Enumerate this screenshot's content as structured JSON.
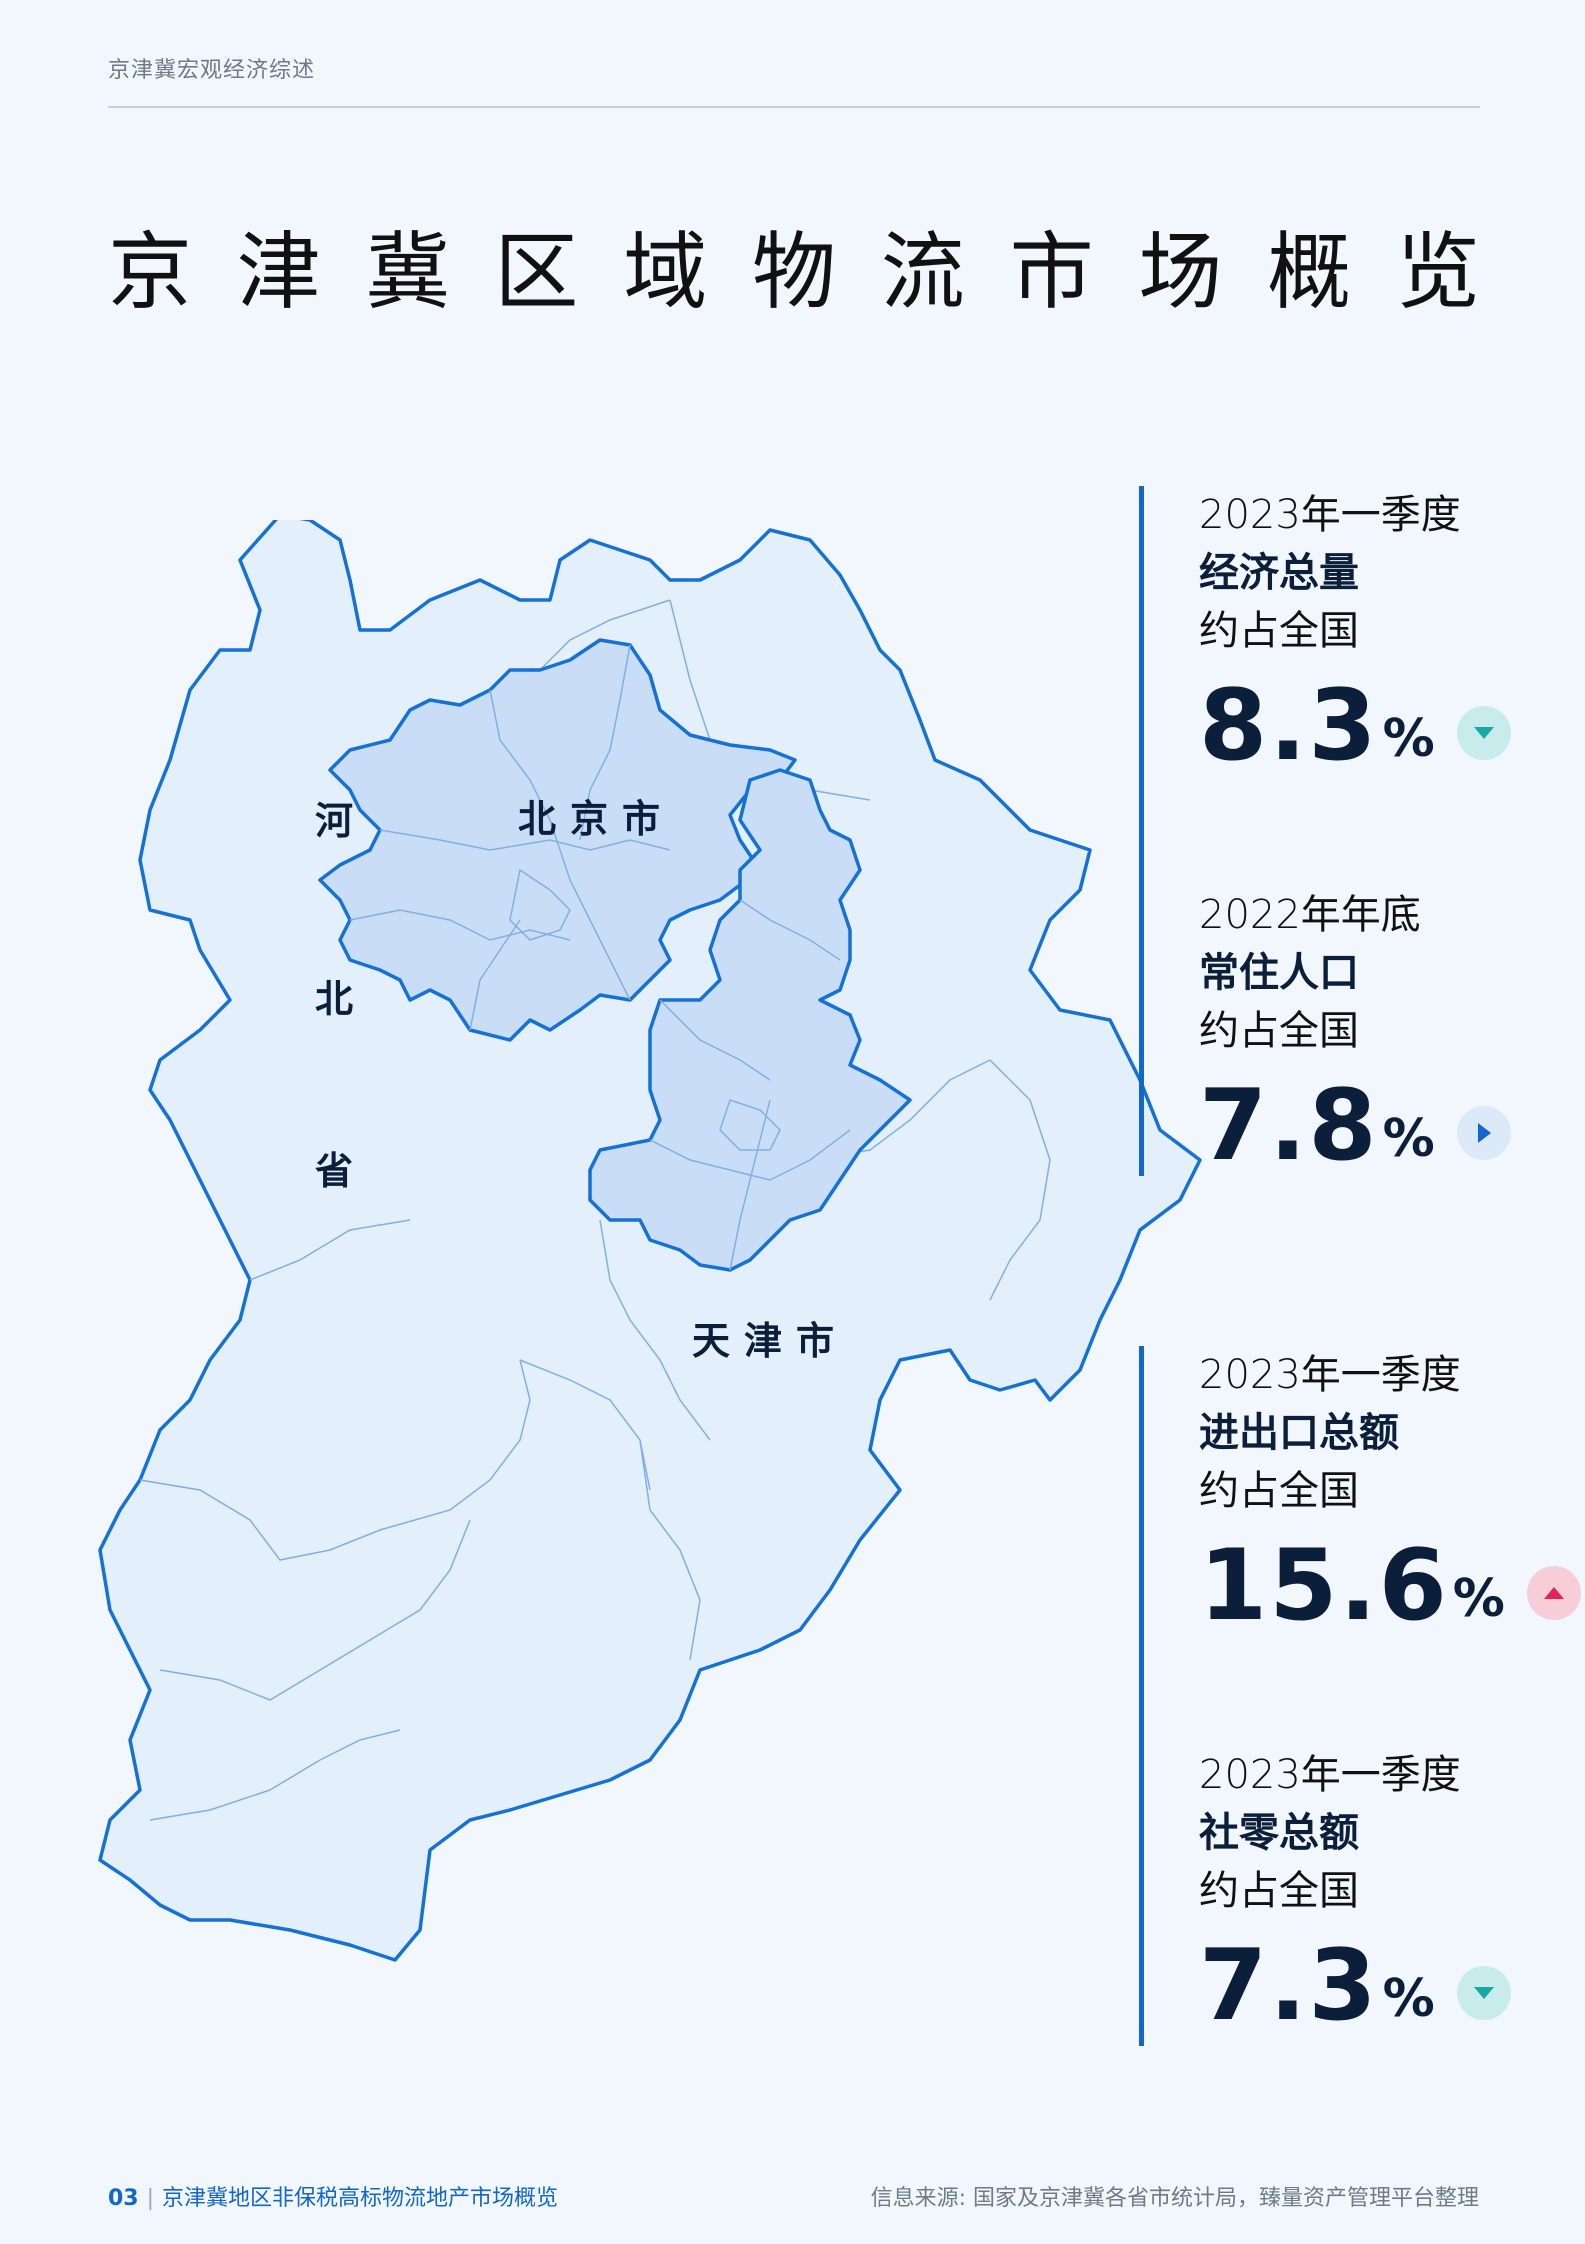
{
  "header": {
    "section": "京津冀宏观经济综述"
  },
  "title_chars": [
    "京",
    "津",
    "冀",
    "区",
    "域",
    "物",
    "流",
    "市",
    "场",
    "概",
    "览"
  ],
  "map": {
    "labels": {
      "hebei": [
        "河",
        "北",
        "省"
      ],
      "beijing": "北京市",
      "tianjin": "天津市"
    },
    "colors": {
      "hebei_fill": "#e3effb",
      "metro_fill": "#c9def6",
      "border": "#1571d6",
      "inner_border": "#7fb0e6"
    }
  },
  "stats": [
    {
      "period": "2023年一季度",
      "metric": "经济总量",
      "share": "约占全国",
      "value": "8.3",
      "unit": "%",
      "trend": "down",
      "trend_icon": "triangle-down-icon",
      "trend_color": "#18a9a5",
      "trend_bg": "#c8ecec"
    },
    {
      "period": "2022年年底",
      "metric": "常住人口",
      "share": "约占全国",
      "value": "7.8",
      "unit": "%",
      "trend": "flat",
      "trend_icon": "triangle-right-icon",
      "trend_color": "#1466c8",
      "trend_bg": "#dbe9f8"
    },
    {
      "period": "2023年一季度",
      "metric": "进出口总额",
      "share": "约占全国",
      "value": "15.6",
      "unit": "%",
      "trend": "up",
      "trend_icon": "triangle-up-icon",
      "trend_color": "#e0245e",
      "trend_bg": "#f7cdd8"
    },
    {
      "period": "2023年一季度",
      "metric": "社零总额",
      "share": "约占全国",
      "value": "7.3",
      "unit": "%",
      "trend": "down",
      "trend_icon": "triangle-down-icon",
      "trend_color": "#18a9a5",
      "trend_bg": "#c8ecec"
    }
  ],
  "footer": {
    "page_number": "03",
    "separator": "|",
    "report_title": "京津冀地区非保税高标物流地产市场概览",
    "source": "信息来源: 国家及京津冀各省市统计局，臻量资产管理平台整理"
  }
}
